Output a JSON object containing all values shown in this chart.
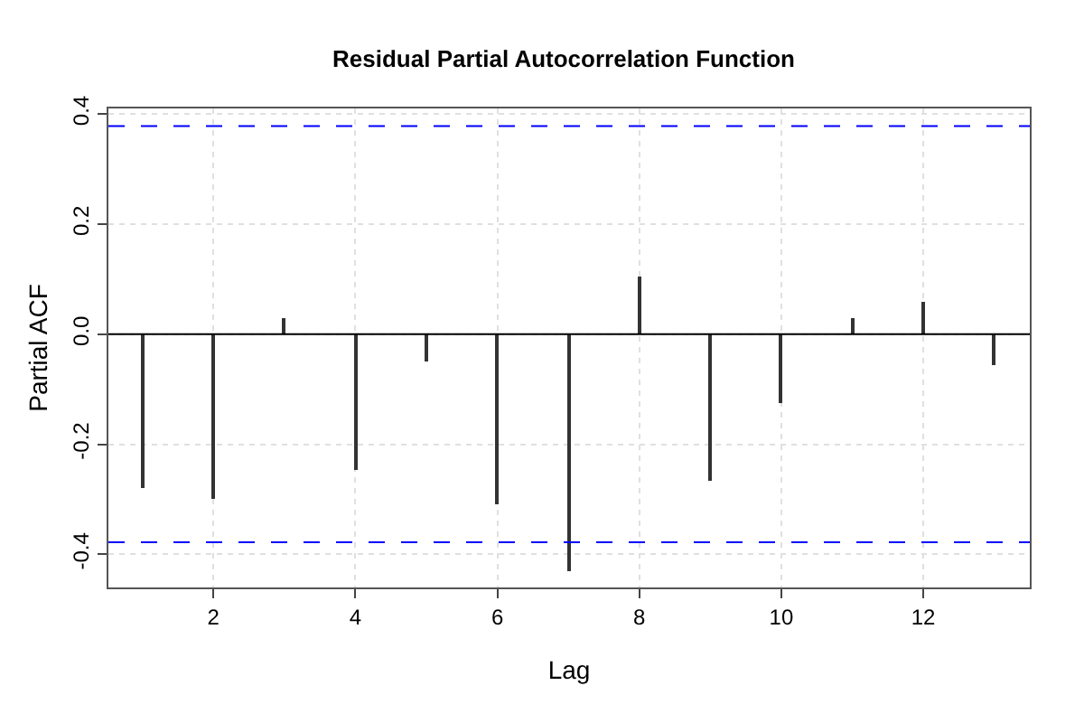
{
  "chart_data": {
    "type": "bar",
    "title": "Residual Partial Autocorrelation Function",
    "xlabel": "Lag",
    "ylabel": "Partial ACF",
    "x": [
      1,
      2,
      3,
      4,
      5,
      6,
      7,
      8,
      9,
      10,
      11,
      12,
      13
    ],
    "values": [
      -0.28,
      -0.3,
      0.03,
      -0.245,
      -0.05,
      -0.31,
      -0.43,
      0.105,
      -0.265,
      -0.125,
      0.03,
      0.06,
      -0.055
    ],
    "color": "#333333",
    "xlim": [
      0.52,
      13.5
    ],
    "xticks": [
      2,
      4,
      6,
      8,
      10,
      12
    ],
    "ylim": [
      -0.46,
      0.41
    ],
    "yticks": [
      -0.4,
      -0.2,
      {
        "value": 0,
        "label": "0.0"
      },
      0.2,
      0.4
    ],
    "ref_lines": [
      {
        "axis": "y",
        "value": 0.378,
        "color": "#0000ff",
        "line_style": "dashed"
      },
      {
        "axis": "y",
        "value": -0.378,
        "color": "#0000ff",
        "line_style": "dashed"
      },
      {
        "axis": "y",
        "value": 0,
        "color": "#000000",
        "line_style": "solid"
      }
    ],
    "grid": true
  }
}
